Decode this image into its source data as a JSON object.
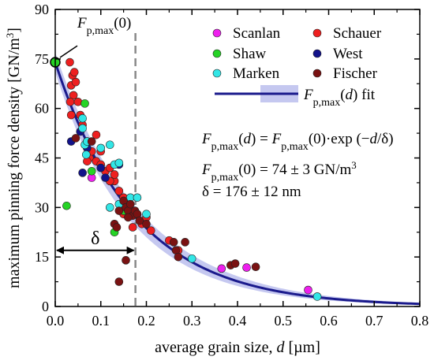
{
  "chart_data": {
    "type": "scatter",
    "xlabel": "average grain size, d [µm]",
    "ylabel": "maximum pinning force density [GN/m³]",
    "xlim": [
      0,
      0.8
    ],
    "ylim": [
      0,
      90
    ],
    "xticks": [
      "0.0",
      "0.1",
      "0.2",
      "0.3",
      "0.4",
      "0.5",
      "0.6",
      "0.7",
      "0.8"
    ],
    "yticks": [
      "0",
      "15",
      "30",
      "45",
      "60",
      "75",
      "90"
    ],
    "x_tick_values": [
      0,
      0.1,
      0.2,
      0.3,
      0.4,
      0.5,
      0.6,
      0.7,
      0.8
    ],
    "y_tick_values": [
      0,
      15,
      30,
      45,
      60,
      75,
      90
    ],
    "grid": false,
    "legend_position": "top-right",
    "series": [
      {
        "name": "Scanlan",
        "color": "#ee1fee",
        "points": [
          [
            0.08,
            39
          ],
          [
            0.365,
            11.5
          ],
          [
            0.42,
            11.8
          ],
          [
            0.555,
            5
          ]
        ]
      },
      {
        "name": "Schauer",
        "color": "#ee1f1f",
        "points": [
          [
            0.032,
            74
          ],
          [
            0.035,
            67
          ],
          [
            0.038,
            70
          ],
          [
            0.042,
            71
          ],
          [
            0.045,
            68
          ],
          [
            0.04,
            64
          ],
          [
            0.033,
            62
          ],
          [
            0.05,
            62
          ],
          [
            0.055,
            58
          ],
          [
            0.06,
            55
          ],
          [
            0.07,
            50
          ],
          [
            0.075,
            45
          ],
          [
            0.08,
            47
          ],
          [
            0.09,
            44
          ],
          [
            0.1,
            43
          ],
          [
            0.11,
            41
          ],
          [
            0.12,
            42
          ],
          [
            0.13,
            38
          ],
          [
            0.14,
            35
          ],
          [
            0.15,
            33
          ],
          [
            0.16,
            31
          ],
          [
            0.17,
            29
          ],
          [
            0.18,
            28
          ],
          [
            0.19,
            25
          ],
          [
            0.2,
            27
          ],
          [
            0.21,
            23
          ],
          [
            0.25,
            20
          ],
          [
            0.27,
            17
          ],
          [
            0.09,
            52
          ],
          [
            0.1,
            47
          ],
          [
            0.13,
            40
          ],
          [
            0.15,
            28
          ],
          [
            0.17,
            24
          ],
          [
            0.035,
            58
          ],
          [
            0.07,
            44
          ],
          [
            0.12,
            38
          ]
        ]
      },
      {
        "name": "Shaw",
        "color": "#25d325",
        "points": [
          [
            0.025,
            30.5
          ],
          [
            0.065,
            61.5
          ],
          [
            0.08,
            41
          ],
          [
            0.13,
            22.5
          ],
          [
            0.15,
            29
          ]
        ]
      },
      {
        "name": "West",
        "color": "#12128a",
        "points": [
          [
            0.035,
            50
          ],
          [
            0.06,
            40.5
          ],
          [
            0.07,
            48
          ],
          [
            0.1,
            42
          ],
          [
            0.11,
            39
          ],
          [
            0.14,
            43
          ],
          [
            0.165,
            28
          ],
          [
            0.055,
            53
          ]
        ]
      },
      {
        "name": "Marken",
        "color": "#32e6e6",
        "points": [
          [
            0.06,
            57
          ],
          [
            0.06,
            54
          ],
          [
            0.065,
            49
          ],
          [
            0.068,
            46
          ],
          [
            0.07,
            50
          ],
          [
            0.1,
            48
          ],
          [
            0.12,
            49
          ],
          [
            0.13,
            43
          ],
          [
            0.14,
            43.5
          ],
          [
            0.12,
            30
          ],
          [
            0.14,
            31
          ],
          [
            0.165,
            33
          ],
          [
            0.18,
            33
          ],
          [
            0.2,
            28
          ],
          [
            0.3,
            14.5
          ],
          [
            0.575,
            3
          ]
        ]
      },
      {
        "name": "Fischer",
        "color": "#7a1212",
        "points": [
          [
            0.045,
            51
          ],
          [
            0.08,
            50
          ],
          [
            0.13,
            25
          ],
          [
            0.135,
            24
          ],
          [
            0.14,
            29
          ],
          [
            0.15,
            32
          ],
          [
            0.155,
            30
          ],
          [
            0.16,
            29
          ],
          [
            0.165,
            31
          ],
          [
            0.17,
            27.5
          ],
          [
            0.175,
            29
          ],
          [
            0.16,
            27
          ],
          [
            0.18,
            28
          ],
          [
            0.185,
            26
          ],
          [
            0.2,
            25
          ],
          [
            0.26,
            19.5
          ],
          [
            0.265,
            17
          ],
          [
            0.285,
            19.5
          ],
          [
            0.27,
            15
          ],
          [
            0.385,
            12.5
          ],
          [
            0.395,
            13
          ],
          [
            0.44,
            12
          ],
          [
            0.155,
            14
          ],
          [
            0.14,
            7.5
          ]
        ]
      }
    ],
    "fit": {
      "name": "Fp,max(d) fit",
      "color": "#1a1a8c",
      "band_color": "#c5c8f0",
      "f0": 74,
      "f0_err": 3,
      "delta": 0.176,
      "delta_err": 0.012
    },
    "special_point": {
      "label": "Fp,max(0)",
      "x": 0,
      "y": 74,
      "color": "#25d325"
    },
    "delta_marker": {
      "label": "δ",
      "x": 0.176
    },
    "annotations": {
      "equation": "Fp,max(d) = Fp,max(0)·exp (−d/δ)",
      "f0_value": "Fp,max(0) = 74 ± 3 GN/m³",
      "delta_value": "δ = 176 ± 12 nm"
    },
    "legend": [
      "Scanlan",
      "Schauer",
      "Shaw",
      "West",
      "Marken",
      "Fischer"
    ]
  }
}
